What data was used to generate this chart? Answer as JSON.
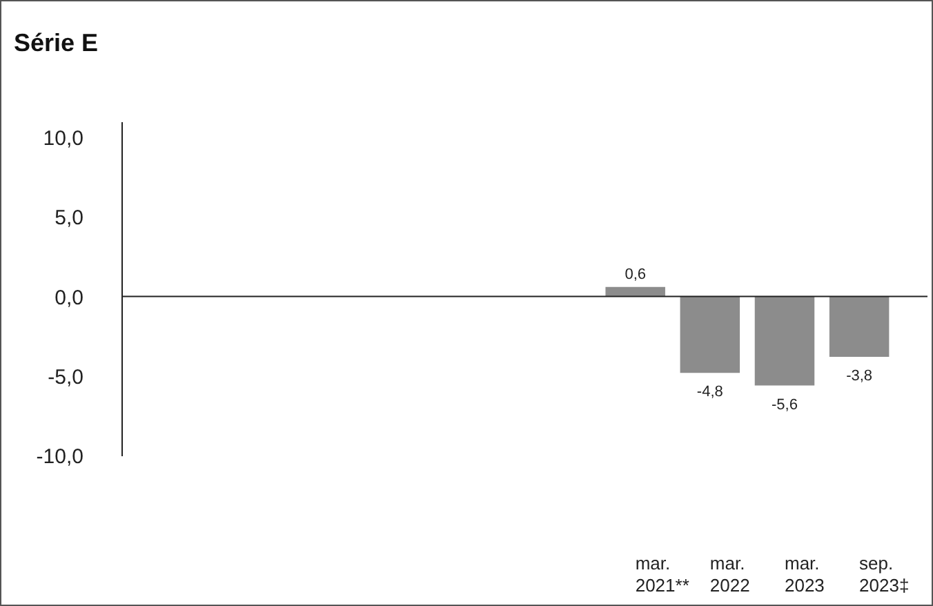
{
  "chart_data": {
    "type": "bar",
    "title": "Série E",
    "categories": [
      null,
      null,
      null,
      null,
      null,
      null,
      null,
      "mar. 2021**",
      "mar. 2022",
      "mar. 2023",
      "sep. 2023‡"
    ],
    "values": [
      null,
      null,
      null,
      null,
      null,
      null,
      null,
      0.6,
      -4.8,
      -5.6,
      -3.8
    ],
    "value_labels": [
      null,
      null,
      null,
      null,
      null,
      null,
      null,
      "0,6",
      "-4,8",
      "-5,6",
      "-3,8"
    ],
    "color": "#8c8c8c",
    "ylim": [
      -10,
      11
    ],
    "yticks": [
      {
        "value": -10,
        "label": "-10,0"
      },
      {
        "value": -5,
        "label": "-5,0"
      },
      {
        "value": 0,
        "label": "0,0"
      },
      {
        "value": 5,
        "label": "5,0"
      },
      {
        "value": 10,
        "label": "10,0"
      }
    ],
    "ref_lines": [
      {
        "axis": "y",
        "value": 0,
        "color": "#222222",
        "line_style": "solid"
      }
    ],
    "grid": false
  }
}
